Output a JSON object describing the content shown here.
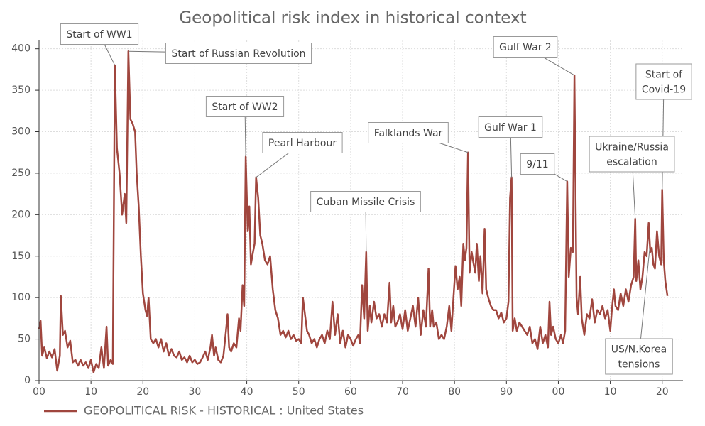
{
  "chart_data": {
    "type": "line",
    "title": "Geopolitical risk index in historical context",
    "x": [
      0,
      0.3,
      0.6,
      1,
      1.5,
      2,
      2.5,
      3,
      3.5,
      4,
      4.2,
      4.6,
      5,
      5.5,
      6,
      6.5,
      7,
      7.5,
      8,
      8.5,
      9,
      9.5,
      10,
      10.5,
      11,
      11.5,
      12,
      12.5,
      13,
      13.3,
      13.8,
      14.2,
      14.6,
      15,
      15.5,
      16,
      16.5,
      16.8,
      17.2,
      17.6,
      18,
      18.5,
      18.8,
      19.2,
      19.6,
      20,
      20.5,
      20.8,
      21.1,
      21.5,
      22,
      22.5,
      23,
      23.5,
      24,
      24.5,
      25,
      25.5,
      26,
      26.5,
      27,
      27.5,
      28,
      28.5,
      29,
      29.5,
      30,
      30.5,
      31,
      31.5,
      32,
      32.5,
      33,
      33.3,
      33.7,
      34,
      34.5,
      35,
      35.5,
      36,
      36.3,
      36.6,
      37,
      37.5,
      38,
      38.5,
      38.8,
      39.2,
      39.5,
      39.8,
      40.2,
      40.5,
      40.8,
      41.2,
      41.5,
      41.8,
      42.2,
      42.6,
      43,
      43.5,
      44,
      44.5,
      45,
      45.5,
      46,
      46.5,
      47,
      47.5,
      48,
      48.5,
      49,
      49.5,
      50,
      50.5,
      50.8,
      51.2,
      51.6,
      52,
      52.5,
      53,
      53.5,
      54,
      54.5,
      55,
      55.5,
      56,
      56.5,
      57,
      57.5,
      58,
      58.5,
      59,
      59.5,
      60,
      60.5,
      61,
      61.5,
      61.8,
      62.2,
      62.6,
      63,
      63.3,
      63.7,
      64,
      64.5,
      65,
      65.5,
      66,
      66.5,
      67,
      67.5,
      67.8,
      68.2,
      68.6,
      69,
      69.5,
      70,
      70.5,
      71,
      71.5,
      72,
      72.5,
      73,
      73.5,
      74,
      74.5,
      75,
      75.3,
      75.7,
      76,
      76.5,
      77,
      77.5,
      78,
      78.5,
      79,
      79.4,
      79.8,
      80.2,
      80.6,
      81,
      81.3,
      81.7,
      82,
      82.3,
      82.6,
      82.9,
      83.3,
      83.7,
      84,
      84.3,
      84.7,
      85,
      85.4,
      85.8,
      86.1,
      86.5,
      87,
      87.5,
      88,
      88.5,
      89,
      89.5,
      90,
      90.4,
      90.7,
      91,
      91.2,
      91.6,
      92,
      92.5,
      93,
      93.5,
      94,
      94.5,
      95,
      95.5,
      96,
      96.5,
      97,
      97.5,
      98,
      98.3,
      98.6,
      99,
      99.5,
      100,
      100.5,
      100.9,
      101.3,
      101.7,
      102,
      102.4,
      102.8,
      103.1,
      103.5,
      103.8,
      104.2,
      104.5,
      105,
      105.5,
      106,
      106.5,
      107,
      107.5,
      108,
      108.5,
      109,
      109.5,
      110,
      110.3,
      110.7,
      111,
      111.5,
      112,
      112.5,
      113,
      113.5,
      114,
      114.5,
      114.8,
      115,
      115.4,
      115.8,
      116.2,
      116.6,
      117,
      117.4,
      117.7,
      118,
      118.3,
      118.6,
      119,
      119.4,
      119.8,
      120,
      120.3,
      120.6,
      121
    ],
    "series": [
      {
        "name": "GEOPOLITICAL RISK - HISTORICAL : United States",
        "color": "#a0463e",
        "values": [
          62,
          72,
          30,
          40,
          27,
          35,
          28,
          38,
          12,
          30,
          102,
          55,
          60,
          40,
          48,
          22,
          25,
          18,
          25,
          18,
          22,
          15,
          25,
          10,
          20,
          15,
          40,
          15,
          65,
          18,
          25,
          20,
          380,
          280,
          250,
          200,
          225,
          190,
          397,
          315,
          310,
          300,
          250,
          210,
          150,
          105,
          85,
          78,
          100,
          50,
          45,
          50,
          40,
          50,
          35,
          45,
          30,
          38,
          30,
          28,
          35,
          25,
          28,
          22,
          30,
          22,
          25,
          20,
          22,
          28,
          35,
          25,
          40,
          55,
          30,
          40,
          25,
          22,
          30,
          60,
          80,
          40,
          35,
          45,
          40,
          75,
          60,
          115,
          90,
          270,
          180,
          210,
          140,
          155,
          165,
          245,
          220,
          175,
          165,
          145,
          140,
          150,
          110,
          85,
          75,
          55,
          60,
          52,
          60,
          50,
          55,
          48,
          50,
          45,
          100,
          80,
          60,
          55,
          45,
          50,
          40,
          50,
          55,
          45,
          60,
          50,
          95,
          55,
          80,
          45,
          60,
          40,
          55,
          50,
          42,
          50,
          55,
          45,
          115,
          75,
          155,
          60,
          90,
          70,
          95,
          75,
          80,
          65,
          80,
          70,
          118,
          70,
          90,
          65,
          70,
          80,
          62,
          85,
          60,
          75,
          90,
          65,
          100,
          55,
          85,
          65,
          135,
          65,
          85,
          65,
          70,
          50,
          55,
          50,
          65,
          90,
          60,
          100,
          138,
          110,
          125,
          90,
          165,
          145,
          160,
          275,
          130,
          155,
          140,
          130,
          165,
          120,
          150,
          105,
          183,
          110,
          100,
          90,
          85,
          85,
          75,
          82,
          70,
          75,
          95,
          220,
          245,
          60,
          75,
          60,
          70,
          65,
          60,
          55,
          65,
          45,
          50,
          38,
          65,
          45,
          55,
          40,
          95,
          55,
          65,
          50,
          45,
          55,
          45,
          60,
          240,
          125,
          160,
          155,
          368,
          100,
          80,
          125,
          75,
          55,
          80,
          75,
          98,
          70,
          85,
          80,
          90,
          75,
          85,
          60,
          85,
          110,
          90,
          85,
          105,
          90,
          110,
          95,
          115,
          125,
          195,
          120,
          145,
          110,
          125,
          155,
          150,
          190,
          155,
          160,
          140,
          135,
          180,
          150,
          140,
          230,
          145,
          120,
          102
        ]
      }
    ],
    "xlim": [
      0,
      124
    ],
    "ylim": [
      0,
      410
    ],
    "xticks": [
      {
        "value": 0,
        "label": "00"
      },
      10,
      20,
      30,
      40,
      50,
      60,
      70,
      80,
      90,
      {
        "value": 100,
        "label": "00"
      },
      {
        "value": 110,
        "label": "10"
      },
      {
        "value": 120,
        "label": "20"
      }
    ],
    "yticks": [
      0,
      50,
      100,
      150,
      200,
      250,
      300,
      350,
      400
    ],
    "grid": true,
    "legend": "bottom-left",
    "annotations": [
      {
        "text": [
          "Start of WW1"
        ],
        "x": 14.6,
        "y": 380
      },
      {
        "text": [
          "Start of Russian Revolution"
        ],
        "x": 17.2,
        "y": 397
      },
      {
        "text": [
          "Start of WW2"
        ],
        "x": 39.8,
        "y": 270
      },
      {
        "text": [
          "Pearl Harbour"
        ],
        "x": 41.8,
        "y": 245
      },
      {
        "text": [
          "Cuban Missile Crisis"
        ],
        "x": 63,
        "y": 155
      },
      {
        "text": [
          "Falklands War"
        ],
        "x": 82.6,
        "y": 275
      },
      {
        "text": [
          "Gulf War 1"
        ],
        "x": 91,
        "y": 245
      },
      {
        "text": [
          "9/11"
        ],
        "x": 101.7,
        "y": 240
      },
      {
        "text": [
          "Gulf War 2"
        ],
        "x": 103.1,
        "y": 368
      },
      {
        "text": [
          "Start of",
          "Covid-19"
        ],
        "x": 120,
        "y": 230
      },
      {
        "text": [
          "Ukraine/Russia",
          "escalation"
        ],
        "x": 114.8,
        "y": 195
      },
      {
        "text": [
          "US/N.Korea",
          "tensions"
        ],
        "x": 117.6,
        "y": 160
      }
    ]
  }
}
